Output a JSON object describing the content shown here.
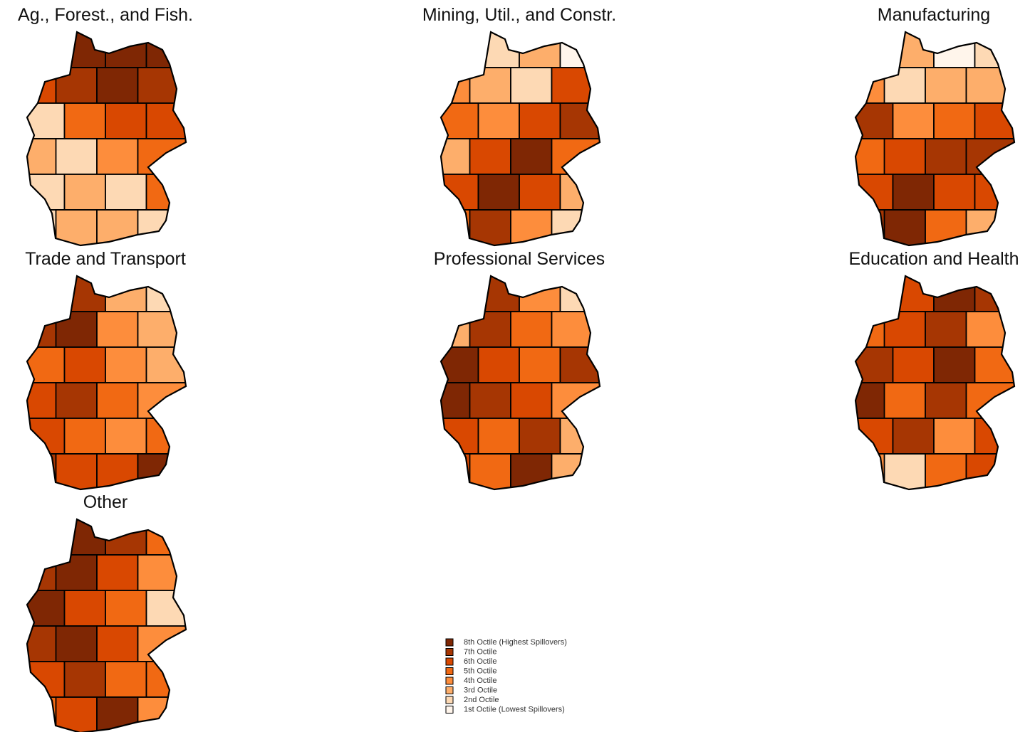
{
  "legend": [
    {
      "label": "8th Octile (Highest Spillovers)",
      "color": "#7f2704"
    },
    {
      "label": "7th Octile",
      "color": "#a63603"
    },
    {
      "label": "6th Octile",
      "color": "#d94801"
    },
    {
      "label": "5th Octile",
      "color": "#f16913"
    },
    {
      "label": "4th Octile",
      "color": "#fd8d3c"
    },
    {
      "label": "3rd Octile",
      "color": "#fdae6b"
    },
    {
      "label": "2nd Octile",
      "color": "#fdd9b4"
    },
    {
      "label": "1st Octile (Lowest Spillovers)",
      "color": "#fff5eb"
    }
  ],
  "maps": [
    {
      "title": "Ag., Forest., and Fish.",
      "octiles": [
        7,
        8,
        8,
        8,
        6,
        7,
        8,
        7,
        2,
        5,
        6,
        6,
        3,
        2,
        4,
        5,
        2,
        3,
        2,
        5,
        2,
        3,
        3,
        2
      ]
    },
    {
      "title": "Mining, Util., and Constr.",
      "octiles": [
        1,
        2,
        3,
        1,
        4,
        3,
        2,
        6,
        5,
        4,
        6,
        7,
        3,
        6,
        8,
        5,
        6,
        8,
        6,
        3,
        5,
        7,
        4,
        2
      ]
    },
    {
      "title": "Manufacturing",
      "octiles": [
        2,
        3,
        1,
        2,
        4,
        2,
        3,
        3,
        7,
        4,
        5,
        6,
        5,
        6,
        7,
        7,
        6,
        8,
        6,
        6,
        7,
        8,
        5,
        3
      ]
    },
    {
      "title": "Trade and Transport",
      "octiles": [
        6,
        7,
        3,
        2,
        7,
        8,
        4,
        3,
        5,
        6,
        4,
        3,
        6,
        7,
        5,
        4,
        6,
        5,
        4,
        5,
        7,
        6,
        6,
        8
      ]
    },
    {
      "title": "Professional Services",
      "octiles": [
        2,
        7,
        4,
        2,
        3,
        7,
        5,
        4,
        8,
        6,
        5,
        7,
        8,
        7,
        6,
        4,
        6,
        5,
        7,
        3,
        6,
        5,
        8,
        3
      ]
    },
    {
      "title": "Education and Health",
      "octiles": [
        3,
        6,
        8,
        7,
        5,
        6,
        7,
        4,
        7,
        6,
        8,
        5,
        8,
        5,
        7,
        5,
        6,
        7,
        4,
        6,
        4,
        2,
        5,
        6
      ]
    },
    {
      "title": "Other",
      "octiles": [
        6,
        8,
        7,
        5,
        7,
        8,
        6,
        4,
        8,
        6,
        5,
        2,
        7,
        8,
        6,
        4,
        6,
        7,
        5,
        5,
        5,
        6,
        8,
        4
      ]
    }
  ]
}
